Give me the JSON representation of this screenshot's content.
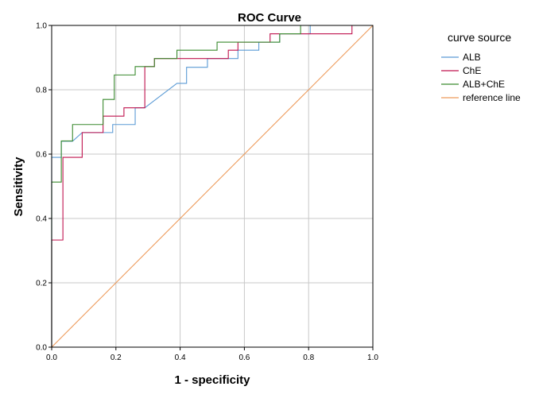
{
  "chart_data": {
    "type": "line",
    "title": "ROC Curve",
    "xlabel": "1 - specificity",
    "ylabel": "Sensitivity",
    "xlim": [
      0.0,
      1.0
    ],
    "ylim": [
      0.0,
      1.0
    ],
    "x_ticks": [
      "0.0",
      "0.2",
      "0.4",
      "0.6",
      "0.8",
      "1.0"
    ],
    "y_ticks": [
      "0.0",
      "0.2",
      "0.4",
      "0.6",
      "0.8",
      "1.0"
    ],
    "grid": true,
    "legend_title": "curve source",
    "legend_position": "right",
    "series": [
      {
        "name": "ALB",
        "color": "#5b9bd5",
        "points": [
          [
            0,
            0
          ],
          [
            0,
            0.59
          ],
          [
            0.03,
            0.59
          ],
          [
            0.03,
            0.64
          ],
          [
            0.065,
            0.64
          ],
          [
            0.095,
            0.667
          ],
          [
            0.19,
            0.667
          ],
          [
            0.19,
            0.692
          ],
          [
            0.26,
            0.692
          ],
          [
            0.26,
            0.744
          ],
          [
            0.29,
            0.744
          ],
          [
            0.39,
            0.82
          ],
          [
            0.42,
            0.82
          ],
          [
            0.42,
            0.87
          ],
          [
            0.485,
            0.87
          ],
          [
            0.485,
            0.897
          ],
          [
            0.58,
            0.897
          ],
          [
            0.58,
            0.923
          ],
          [
            0.645,
            0.923
          ],
          [
            0.645,
            0.948
          ],
          [
            0.71,
            0.948
          ],
          [
            0.71,
            0.974
          ],
          [
            0.805,
            0.974
          ],
          [
            0.805,
            1.0
          ],
          [
            1.0,
            1.0
          ]
        ]
      },
      {
        "name": "ChE",
        "color": "#c0144f",
        "points": [
          [
            0,
            0
          ],
          [
            0,
            0.333
          ],
          [
            0.035,
            0.333
          ],
          [
            0.035,
            0.59
          ],
          [
            0.095,
            0.59
          ],
          [
            0.095,
            0.667
          ],
          [
            0.16,
            0.667
          ],
          [
            0.16,
            0.718
          ],
          [
            0.225,
            0.718
          ],
          [
            0.225,
            0.744
          ],
          [
            0.29,
            0.744
          ],
          [
            0.29,
            0.872
          ],
          [
            0.32,
            0.872
          ],
          [
            0.32,
            0.897
          ],
          [
            0.55,
            0.897
          ],
          [
            0.55,
            0.923
          ],
          [
            0.58,
            0.923
          ],
          [
            0.58,
            0.948
          ],
          [
            0.68,
            0.948
          ],
          [
            0.68,
            0.974
          ],
          [
            0.935,
            0.974
          ],
          [
            0.935,
            1.0
          ],
          [
            1.0,
            1.0
          ]
        ]
      },
      {
        "name": "ALB+ChE",
        "color": "#3a8a2e",
        "points": [
          [
            0,
            0
          ],
          [
            0,
            0.513
          ],
          [
            0.03,
            0.513
          ],
          [
            0.03,
            0.641
          ],
          [
            0.065,
            0.641
          ],
          [
            0.065,
            0.692
          ],
          [
            0.16,
            0.692
          ],
          [
            0.16,
            0.77
          ],
          [
            0.195,
            0.77
          ],
          [
            0.195,
            0.846
          ],
          [
            0.26,
            0.846
          ],
          [
            0.26,
            0.872
          ],
          [
            0.32,
            0.872
          ],
          [
            0.32,
            0.897
          ],
          [
            0.39,
            0.897
          ],
          [
            0.39,
            0.923
          ],
          [
            0.515,
            0.923
          ],
          [
            0.515,
            0.948
          ],
          [
            0.71,
            0.948
          ],
          [
            0.71,
            0.974
          ],
          [
            0.775,
            0.974
          ],
          [
            0.775,
            1.0
          ],
          [
            1.0,
            1.0
          ]
        ]
      },
      {
        "name": "reference line",
        "color": "#ed9a5a",
        "points": [
          [
            0,
            0
          ],
          [
            1,
            1
          ]
        ]
      }
    ]
  }
}
